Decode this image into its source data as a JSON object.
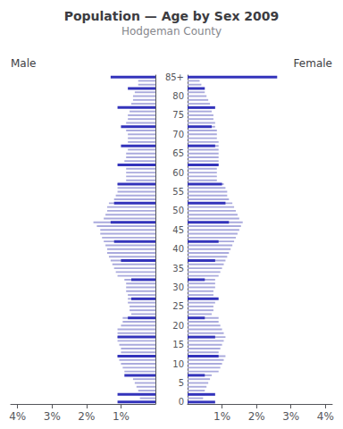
{
  "chart_data": [
    {
      "type": "bar",
      "orientation": "horizontal",
      "title": "Population — Age by Sex 2009",
      "subtitle": "Hodgeman County",
      "annotations": [
        "Male"
      ],
      "categories": [
        "85+",
        null,
        null,
        null,
        null,
        "80",
        null,
        null,
        null,
        null,
        "75",
        null,
        null,
        null,
        null,
        "70",
        null,
        null,
        null,
        null,
        "65",
        null,
        null,
        null,
        null,
        "60",
        null,
        null,
        null,
        null,
        "55",
        null,
        null,
        null,
        null,
        "50",
        null,
        null,
        null,
        null,
        "45",
        null,
        null,
        null,
        null,
        "40",
        null,
        null,
        null,
        null,
        "35",
        null,
        null,
        null,
        null,
        "30",
        null,
        null,
        null,
        null,
        "25",
        null,
        null,
        null,
        null,
        "20",
        null,
        null,
        null,
        null,
        "15",
        null,
        null,
        null,
        null,
        "10",
        null,
        null,
        null,
        null,
        "5",
        null,
        null,
        null,
        null,
        "0"
      ],
      "xlim": [
        0,
        4.2
      ],
      "xticks": [
        {
          "value": 4,
          "label": "4%"
        },
        {
          "value": 3,
          "label": "3%"
        },
        {
          "value": 2,
          "label": "2%"
        },
        {
          "value": 1,
          "label": "1%"
        }
      ],
      "grid": false,
      "tick_labels": "x",
      "series": [
        {
          "color": "#aaaadd",
          "values": [
            0.4,
            0.5,
            0.5,
            0.6,
            0.6,
            0.65,
            0.65,
            0.7,
            0.75,
            0.75,
            0.8,
            0.8,
            0.85,
            0.85,
            0.85,
            0.8,
            0.8,
            0.8,
            0.8,
            0.8,
            0.85,
            0.85,
            0.9,
            0.9,
            0.85,
            0.85,
            0.85,
            0.85,
            1.1,
            1.1,
            1.1,
            1.15,
            1.2,
            1.35,
            1.4,
            1.4,
            1.45,
            1.5,
            1.8,
            1.7,
            1.6,
            1.6,
            1.55,
            1.5,
            1.45,
            1.4,
            1.4,
            1.35,
            1.3,
            1.25,
            1.2,
            1.15,
            1.1,
            0.9,
            0.85,
            0.85,
            0.85,
            0.8,
            0.8,
            0.8,
            0.75,
            0.75,
            0.7,
            0.95,
            0.95,
            1.0,
            1.1,
            1.1,
            1.1,
            1.1,
            1.05,
            1.0,
            1.0,
            1.1,
            1.05,
            1.0,
            0.95,
            0.9,
            0.7,
            0.65,
            0.6,
            0.55,
            0.5,
            0.5,
            0.45,
            0.45
          ]
        },
        {
          "color": "#3333bb",
          "values": [
            1.3,
            0.0,
            0.0,
            0.8,
            0.0,
            0.0,
            0.0,
            0.0,
            1.1,
            0.0,
            0.0,
            0.0,
            0.0,
            1.0,
            0.0,
            0.0,
            0.0,
            0.0,
            1.0,
            0.0,
            0.0,
            0.0,
            0.0,
            1.1,
            0.0,
            0.0,
            0.0,
            0.0,
            1.1,
            0.0,
            0.0,
            0.0,
            0.0,
            1.2,
            0.0,
            0.0,
            0.0,
            0.0,
            1.3,
            0.0,
            0.0,
            0.0,
            0.0,
            1.2,
            0.0,
            0.0,
            0.0,
            0.0,
            1.0,
            0.0,
            0.0,
            0.0,
            0.0,
            0.7,
            0.0,
            0.0,
            0.0,
            0.0,
            0.7,
            0.0,
            0.0,
            0.0,
            0.0,
            0.8,
            0.0,
            0.0,
            0.0,
            0.0,
            1.1,
            0.0,
            0.0,
            0.0,
            0.0,
            1.1,
            0.0,
            0.0,
            0.0,
            0.0,
            0.9,
            0.0,
            0.0,
            0.0,
            0.0,
            1.1,
            0.0,
            1.1
          ]
        }
      ]
    },
    {
      "type": "bar",
      "orientation": "horizontal",
      "annotations": [
        "Female"
      ],
      "categories": [
        "85+",
        null,
        null,
        null,
        null,
        "80",
        null,
        null,
        null,
        null,
        "75",
        null,
        null,
        null,
        null,
        "70",
        null,
        null,
        null,
        null,
        "65",
        null,
        null,
        null,
        null,
        "60",
        null,
        null,
        null,
        null,
        "55",
        null,
        null,
        null,
        null,
        "50",
        null,
        null,
        null,
        null,
        "45",
        null,
        null,
        null,
        null,
        "40",
        null,
        null,
        null,
        null,
        "35",
        null,
        null,
        null,
        null,
        "30",
        null,
        null,
        null,
        null,
        "25",
        null,
        null,
        null,
        null,
        "20",
        null,
        null,
        null,
        null,
        "15",
        null,
        null,
        null,
        null,
        "10",
        null,
        null,
        null,
        null,
        "5",
        null,
        null,
        null,
        null,
        "0"
      ],
      "xlim": [
        0,
        4.2
      ],
      "xticks": [
        {
          "value": 1,
          "label": "1%"
        },
        {
          "value": 2,
          "label": "2%"
        },
        {
          "value": 3,
          "label": "3%"
        },
        {
          "value": 4,
          "label": "4%"
        }
      ],
      "grid": false,
      "series": [
        {
          "color": "#aaaadd",
          "values": [
            0.3,
            0.35,
            0.4,
            0.45,
            0.5,
            0.55,
            0.6,
            0.65,
            0.7,
            0.7,
            0.75,
            0.75,
            0.8,
            0.8,
            0.85,
            0.85,
            0.85,
            0.9,
            0.9,
            0.9,
            0.9,
            0.9,
            0.9,
            0.9,
            0.85,
            0.85,
            0.85,
            0.85,
            1.05,
            1.1,
            1.15,
            1.15,
            1.2,
            1.3,
            1.35,
            1.4,
            1.45,
            1.5,
            1.6,
            1.55,
            1.5,
            1.45,
            1.4,
            1.35,
            1.3,
            1.25,
            1.2,
            1.15,
            1.1,
            1.05,
            1.0,
            0.95,
            0.9,
            0.8,
            0.8,
            0.8,
            0.75,
            0.75,
            0.8,
            0.8,
            0.75,
            0.75,
            0.7,
            0.9,
            0.9,
            0.95,
            1.0,
            1.05,
            1.1,
            1.05,
            1.0,
            0.95,
            0.9,
            1.1,
            1.05,
            1.0,
            0.95,
            0.9,
            0.7,
            0.65,
            0.6,
            0.55,
            0.5,
            0.5,
            0.45,
            0.45
          ]
        },
        {
          "color": "#3333bb",
          "values": [
            2.6,
            0.0,
            0.0,
            0.5,
            0.0,
            0.0,
            0.0,
            0.0,
            0.8,
            0.0,
            0.0,
            0.0,
            0.0,
            0.7,
            0.0,
            0.0,
            0.0,
            0.0,
            0.8,
            0.0,
            0.0,
            0.0,
            0.0,
            0.9,
            0.0,
            0.0,
            0.0,
            0.0,
            1.0,
            0.0,
            0.0,
            0.0,
            0.0,
            1.1,
            0.0,
            0.0,
            0.0,
            0.0,
            1.2,
            0.0,
            0.0,
            0.0,
            0.0,
            0.9,
            0.0,
            0.0,
            0.0,
            0.0,
            0.8,
            0.0,
            0.0,
            0.0,
            0.0,
            0.5,
            0.0,
            0.0,
            0.0,
            0.0,
            0.9,
            0.0,
            0.0,
            0.0,
            0.0,
            0.5,
            0.0,
            0.0,
            0.0,
            0.0,
            0.8,
            0.0,
            0.0,
            0.0,
            0.0,
            0.9,
            0.0,
            0.0,
            0.0,
            0.0,
            0.5,
            0.0,
            0.0,
            0.0,
            0.0,
            0.8,
            0.0,
            0.8
          ]
        }
      ]
    }
  ]
}
